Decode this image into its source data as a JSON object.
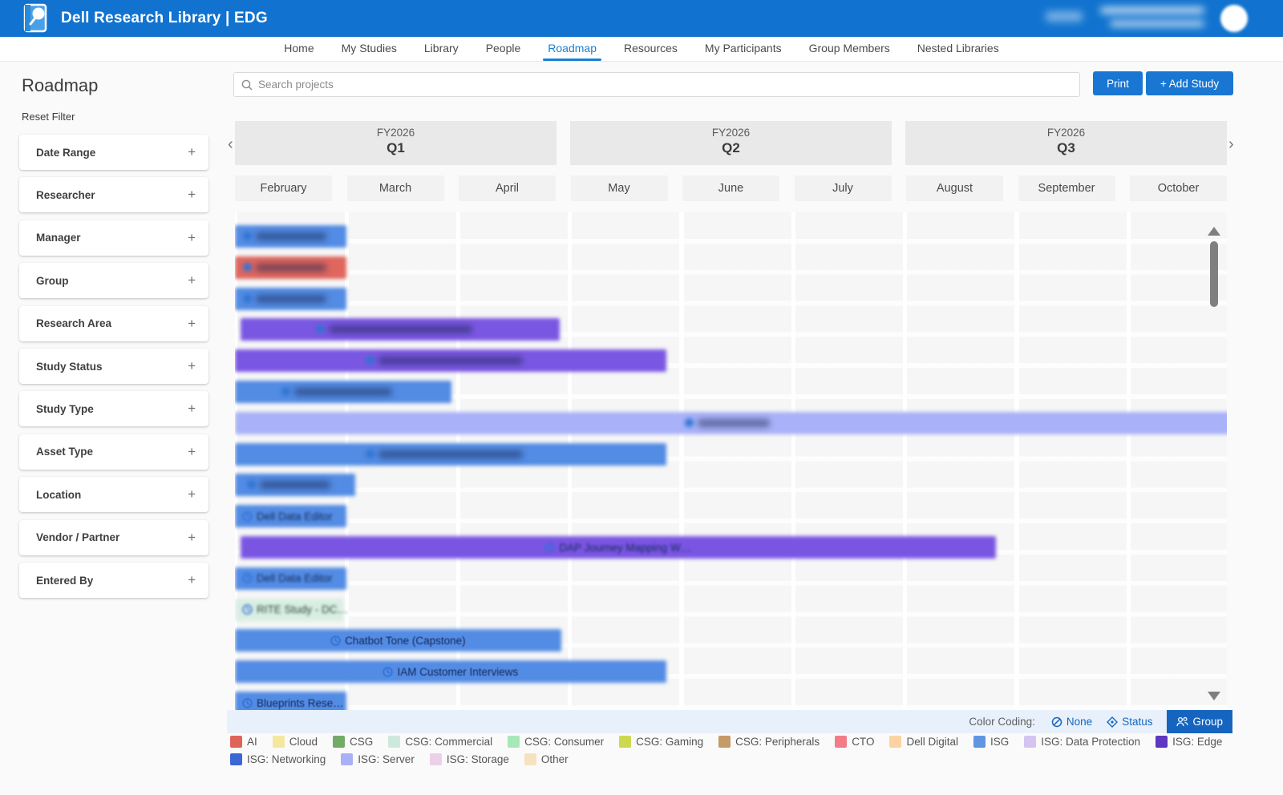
{
  "header": {
    "title": "Dell Research Library | EDG"
  },
  "nav": {
    "active": "Roadmap",
    "items": [
      "Home",
      "My Studies",
      "Library",
      "People",
      "Roadmap",
      "Resources",
      "My Participants",
      "Group Members",
      "Nested Libraries"
    ]
  },
  "sidebar": {
    "title": "Roadmap",
    "reset_label": "Reset Filter",
    "filters": [
      "Date Range",
      "Researcher",
      "Manager",
      "Group",
      "Research Area",
      "Study Status",
      "Study Type",
      "Asset Type",
      "Location",
      "Vendor / Partner",
      "Entered By"
    ],
    "expand_glyph": "+"
  },
  "toolbar": {
    "search_placeholder": "Search projects",
    "print_label": "Print",
    "add_study_label": "+ Add Study"
  },
  "timeline": {
    "prev_glyph": "‹",
    "next_glyph": "›",
    "quarters": [
      {
        "fy": "FY2026",
        "q": "Q1"
      },
      {
        "fy": "FY2026",
        "q": "Q2"
      },
      {
        "fy": "FY2026",
        "q": "Q3"
      }
    ],
    "months": [
      "February",
      "March",
      "April",
      "May",
      "June",
      "July",
      "August",
      "September",
      "October"
    ]
  },
  "chart_data": {
    "type": "gantt",
    "x_axis": {
      "unit": "month",
      "start_label": "February",
      "end_label": "October",
      "months_visible": 9
    },
    "rows": [
      {
        "label": "",
        "redacted": true,
        "color": "#538ce4",
        "start_month": 0,
        "end_month": 1.0
      },
      {
        "label": "",
        "redacted": true,
        "color": "#e0665e",
        "start_month": 0,
        "end_month": 1.0
      },
      {
        "label": "",
        "redacted": true,
        "color": "#538ce4",
        "start_month": 0,
        "end_month": 1.0
      },
      {
        "label": "",
        "redacted": true,
        "color": "#7a57e2",
        "start_month": 0.05,
        "end_month": 2.91
      },
      {
        "label": "",
        "redacted": true,
        "color": "#7a57e2",
        "start_month": 0,
        "end_month": 3.86
      },
      {
        "label": "",
        "redacted": true,
        "color": "#538ce4",
        "start_month": 0,
        "end_month": 1.94
      },
      {
        "label": "",
        "redacted": true,
        "color": "#a9b2f8",
        "start_month": 0,
        "end_month": 8.93,
        "smudge_w": 90
      },
      {
        "label": "",
        "redacted": true,
        "color": "#538ce4",
        "start_month": 0,
        "end_month": 3.86
      },
      {
        "label": "",
        "redacted": true,
        "color": "#538ce4",
        "start_month": 0,
        "end_month": 1.08
      },
      {
        "label": "Dell Data Editor",
        "semi": true,
        "align": "left",
        "color": "#538ce4",
        "start_month": 0,
        "end_month": 1.0
      },
      {
        "label": "DAP Journey Mapping W…",
        "semi": true,
        "color": "#7a55e2",
        "start_month": 0.05,
        "end_month": 6.81
      },
      {
        "label": "Dell Data Editor",
        "semi": true,
        "align": "left",
        "color": "#538ce4",
        "start_month": 0,
        "end_month": 1.0
      },
      {
        "label": "RITE Study - DC…",
        "semi": true,
        "align": "left",
        "color": "#d9eee3",
        "dark_text": true,
        "start_month": 0,
        "end_month": 0.97
      },
      {
        "label": "Chatbot Tone (Capstone)",
        "color": "#538ce4",
        "start_month": 0,
        "end_month": 2.92
      },
      {
        "label": "IAM Customer Interviews",
        "color": "#538ce4",
        "start_month": 0,
        "end_month": 3.86
      },
      {
        "label": "Blueprints Rese…",
        "align": "left",
        "color": "#538ce4",
        "start_month": 0,
        "end_month": 1.0
      }
    ]
  },
  "color_coding": {
    "label": "Color Coding:",
    "options": [
      {
        "label": "None",
        "icon": "none",
        "selected": false
      },
      {
        "label": "Status",
        "icon": "status",
        "selected": false
      },
      {
        "label": "Group",
        "icon": "group",
        "selected": true
      }
    ],
    "accent": "#1565c0"
  },
  "legend": {
    "items": [
      {
        "label": "AI",
        "color": "#e0635a"
      },
      {
        "label": "Cloud",
        "color": "#f5e79e"
      },
      {
        "label": "CSG",
        "color": "#72ab68"
      },
      {
        "label": "CSG: Commercial",
        "color": "#cfe8dd"
      },
      {
        "label": "CSG: Consumer",
        "color": "#a8e8b8"
      },
      {
        "label": "CSG: Gaming",
        "color": "#ccd94e"
      },
      {
        "label": "CSG: Peripherals",
        "color": "#c49a68"
      },
      {
        "label": "CTO",
        "color": "#f27d88"
      },
      {
        "label": "Dell Digital",
        "color": "#fbd3a2"
      },
      {
        "label": "ISG",
        "color": "#5e97e0"
      },
      {
        "label": "ISG: Data Protection",
        "color": "#d3c4f0"
      },
      {
        "label": "ISG: Edge",
        "color": "#5d38c0"
      },
      {
        "label": "ISG: Networking",
        "color": "#3c65d6"
      },
      {
        "label": "ISG: Server",
        "color": "#a8b1f5"
      },
      {
        "label": "ISG: Storage",
        "color": "#ecd0e8"
      },
      {
        "label": "Other",
        "color": "#f7e2c0"
      }
    ]
  }
}
